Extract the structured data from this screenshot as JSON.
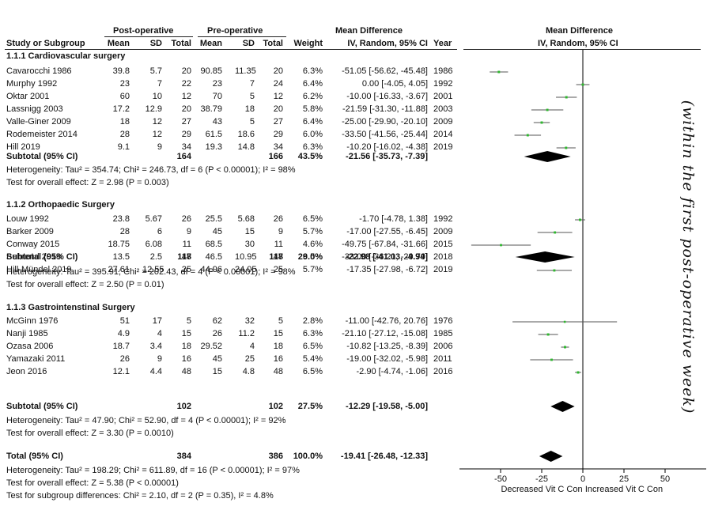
{
  "header": {
    "post_op": "Post-operative",
    "pre_op": "Pre-operative",
    "md_text": "Mean Difference",
    "md_plot": "Mean Difference",
    "study": "Study or Subgroup",
    "mean1": "Mean",
    "sd1": "SD",
    "total1": "Total",
    "mean2": "Mean",
    "sd2": "SD",
    "total2": "Total",
    "weight": "Weight",
    "method": "IV, Random, 95% CI",
    "year": "Year",
    "method_plot": "IV, Random, 95% CI"
  },
  "groups": [
    {
      "title": "1.1.1 Cardiovascular surgery",
      "studies": [
        {
          "name": "Cavarocchi 1986",
          "m1": "39.8",
          "sd1": "5.7",
          "n1": "20",
          "m2": "90.85",
          "sd2": "11.35",
          "n2": "20",
          "w": "6.3%",
          "ci": "-51.05 [-56.62, -45.48]",
          "year": "1986"
        },
        {
          "name": "Murphy 1992",
          "m1": "23",
          "sd1": "7",
          "n1": "22",
          "m2": "23",
          "sd2": "7",
          "n2": "24",
          "w": "6.4%",
          "ci": "0.00 [-4.05, 4.05]",
          "year": "1992"
        },
        {
          "name": "Oktar 2001",
          "m1": "60",
          "sd1": "10",
          "n1": "12",
          "m2": "70",
          "sd2": "5",
          "n2": "12",
          "w": "6.2%",
          "ci": "-10.00 [-16.33, -3.67]",
          "year": "2001"
        },
        {
          "name": "Lassnigg 2003",
          "m1": "17.2",
          "sd1": "12.9",
          "n1": "20",
          "m2": "38.79",
          "sd2": "18",
          "n2": "20",
          "w": "5.8%",
          "ci": "-21.59 [-31.30, -11.88]",
          "year": "2003"
        },
        {
          "name": "Valle-Giner 2009",
          "m1": "18",
          "sd1": "12",
          "n1": "27",
          "m2": "43",
          "sd2": "5",
          "n2": "27",
          "w": "6.4%",
          "ci": "-25.00 [-29.90, -20.10]",
          "year": "2009"
        },
        {
          "name": "Rodemeister 2014",
          "m1": "28",
          "sd1": "12",
          "n1": "29",
          "m2": "61.5",
          "sd2": "18.6",
          "n2": "29",
          "w": "6.0%",
          "ci": "-33.50 [-41.56, -25.44]",
          "year": "2014"
        },
        {
          "name": "Hill 2019",
          "m1": "9.1",
          "sd1": "9",
          "n1": "34",
          "m2": "19.3",
          "sd2": "14.8",
          "n2": "34",
          "w": "6.3%",
          "ci": "-10.20 [-16.02, -4.38]",
          "year": "2019"
        }
      ],
      "subtotal": {
        "label": "Subtotal (95% CI)",
        "n1": "164",
        "n2": "166",
        "w": "43.5%",
        "ci": "-21.56 [-35.73, -7.39]"
      },
      "heterogeneity": "Heterogeneity: Tau² = 354.74; Chi² = 246.73, df = 6 (P < 0.00001); I² = 98%",
      "overall": "Test for overall effect: Z = 2.98 (P = 0.003)"
    },
    {
      "title": "1.1.2 Orthopaedic Surgery",
      "studies": [
        {
          "name": "Louw 1992",
          "m1": "23.8",
          "sd1": "5.67",
          "n1": "26",
          "m2": "25.5",
          "sd2": "5.68",
          "n2": "26",
          "w": "6.5%",
          "ci": "-1.70 [-4.78, 1.38]",
          "year": "1992"
        },
        {
          "name": "Barker 2009",
          "m1": "28",
          "sd1": "6",
          "n1": "9",
          "m2": "45",
          "sd2": "15",
          "n2": "9",
          "w": "5.7%",
          "ci": "-17.00 [-27.55, -6.45]",
          "year": "2009"
        },
        {
          "name": "Conway 2015",
          "m1": "18.75",
          "sd1": "6.08",
          "n1": "11",
          "m2": "68.5",
          "sd2": "30",
          "n2": "11",
          "w": "4.6%",
          "ci": "-49.75 [-67.84, -31.66]",
          "year": "2015"
        },
        {
          "name": "Behrend 2018",
          "m1": "13.5",
          "sd1": "2.5",
          "n1": "47",
          "m2": "46.5",
          "sd2": "10.95",
          "n2": "47",
          "w": "6.5%",
          "ci": "-33.00 [-36.21, -29.79]",
          "year": "2018"
        },
        {
          "name": "Hill-Mündel 2019",
          "m1": "27.61",
          "sd1": "12.55",
          "n1": "25",
          "m2": "44.96",
          "sd2": "24.05",
          "n2": "25",
          "w": "5.7%",
          "ci": "-17.35 [-27.98, -6.72]",
          "year": "2019"
        }
      ],
      "subtotal": {
        "label": "Subtotal (95% CI)",
        "n1": "118",
        "n2": "118",
        "w": "29.0%",
        "ci": "-22.98 [-41.03, -4.94]"
      },
      "heterogeneity": "Heterogeneity: Tau² = 395.91; Chi² = 202.43, df = 4 (P < 0.00001); I² = 98%",
      "overall": "Test for overall effect: Z = 2.50 (P = 0.01)"
    },
    {
      "title": "1.1.3 Gastrointenstinal Surgery",
      "studies": [
        {
          "name": "McGinn 1976",
          "m1": "51",
          "sd1": "17",
          "n1": "5",
          "m2": "62",
          "sd2": "32",
          "n2": "5",
          "w": "2.8%",
          "ci": "-11.00 [-42.76, 20.76]",
          "year": "1976"
        },
        {
          "name": "Nanji 1985",
          "m1": "4.9",
          "sd1": "4",
          "n1": "15",
          "m2": "26",
          "sd2": "11.2",
          "n2": "15",
          "w": "6.3%",
          "ci": "-21.10 [-27.12, -15.08]",
          "year": "1985"
        },
        {
          "name": "Ozasa 2006",
          "m1": "18.7",
          "sd1": "3.4",
          "n1": "18",
          "m2": "29.52",
          "sd2": "4",
          "n2": "18",
          "w": "6.5%",
          "ci": "-10.82 [-13.25, -8.39]",
          "year": "2006"
        },
        {
          "name": "Yamazaki 2011",
          "m1": "26",
          "sd1": "9",
          "n1": "16",
          "m2": "45",
          "sd2": "25",
          "n2": "16",
          "w": "5.4%",
          "ci": "-19.00 [-32.02, -5.98]",
          "year": "2011"
        },
        {
          "name": "Jeon 2016",
          "m1": "12.1",
          "sd1": "4.4",
          "n1": "48",
          "m2": "15",
          "sd2": "4.8",
          "n2": "48",
          "w": "6.5%",
          "ci": "-2.90 [-4.74, -1.06]",
          "year": "2016"
        }
      ],
      "subtotal": {
        "label": "Subtotal (95% CI)",
        "n1": "102",
        "n2": "102",
        "w": "27.5%",
        "ci": "-12.29 [-19.58, -5.00]"
      },
      "heterogeneity": "Heterogeneity: Tau² = 47.90; Chi² = 52.90, df = 4 (P < 0.00001); I² = 92%",
      "overall": "Test for overall effect: Z = 3.30 (P = 0.0010)"
    }
  ],
  "total": {
    "label": "Total (95% CI)",
    "n1": "384",
    "n2": "386",
    "w": "100.0%",
    "ci": "-19.41 [-26.48, -12.33]",
    "heterogeneity": "Heterogeneity: Tau² = 198.29; Chi² = 611.89, df = 16 (P < 0.00001); I² = 97%",
    "overall": "Test for overall effect: Z = 5.38 (P < 0.00001)",
    "subgroup": "Test for subgroup differences: Chi² = 2.10, df = 2 (P = 0.35), I² = 4.8%"
  },
  "side_note": "(within the first post-operative week)",
  "colors": {
    "square": "#2fb82f",
    "line": "#555555",
    "diamond": "#000000"
  },
  "chart_data": {
    "type": "forest",
    "title": "Mean Difference IV, Random, 95% CI",
    "xlim": [
      -75,
      75
    ],
    "xticks": [
      -50,
      -25,
      0,
      25,
      50
    ],
    "xlabel_left": "Decreased Vit C Con",
    "xlabel_right": "Increased Vit C Con",
    "studies": [
      {
        "name": "Cavarocchi 1986",
        "md": -51.05,
        "lo": -56.62,
        "hi": -45.48,
        "weight": 6.3
      },
      {
        "name": "Murphy 1992",
        "md": 0.0,
        "lo": -4.05,
        "hi": 4.05,
        "weight": 6.4
      },
      {
        "name": "Oktar 2001",
        "md": -10.0,
        "lo": -16.33,
        "hi": -3.67,
        "weight": 6.2
      },
      {
        "name": "Lassnigg 2003",
        "md": -21.59,
        "lo": -31.3,
        "hi": -11.88,
        "weight": 5.8
      },
      {
        "name": "Valle-Giner 2009",
        "md": -25.0,
        "lo": -29.9,
        "hi": -20.1,
        "weight": 6.4
      },
      {
        "name": "Rodemeister 2014",
        "md": -33.5,
        "lo": -41.56,
        "hi": -25.44,
        "weight": 6.0
      },
      {
        "name": "Hill 2019",
        "md": -10.2,
        "lo": -16.02,
        "hi": -4.38,
        "weight": 6.3
      },
      {
        "name": "Louw 1992",
        "md": -1.7,
        "lo": -4.78,
        "hi": 1.38,
        "weight": 6.5
      },
      {
        "name": "Barker 2009",
        "md": -17.0,
        "lo": -27.55,
        "hi": -6.45,
        "weight": 5.7
      },
      {
        "name": "Conway 2015",
        "md": -49.75,
        "lo": -67.84,
        "hi": -31.66,
        "weight": 4.6
      },
      {
        "name": "Behrend 2018",
        "md": -33.0,
        "lo": -36.21,
        "hi": -29.79,
        "weight": 6.5
      },
      {
        "name": "Hill-Mündel 2019",
        "md": -17.35,
        "lo": -27.98,
        "hi": -6.72,
        "weight": 5.7
      },
      {
        "name": "McGinn 1976",
        "md": -11.0,
        "lo": -42.76,
        "hi": 20.76,
        "weight": 2.8
      },
      {
        "name": "Nanji 1985",
        "md": -21.1,
        "lo": -27.12,
        "hi": -15.08,
        "weight": 6.3
      },
      {
        "name": "Ozasa 2006",
        "md": -10.82,
        "lo": -13.25,
        "hi": -8.39,
        "weight": 6.5
      },
      {
        "name": "Yamazaki 2011",
        "md": -19.0,
        "lo": -32.02,
        "hi": -5.98,
        "weight": 5.4
      },
      {
        "name": "Jeon 2016",
        "md": -2.9,
        "lo": -4.74,
        "hi": -1.06,
        "weight": 6.5
      }
    ],
    "summaries": [
      {
        "name": "Subtotal 1.1.1",
        "md": -21.56,
        "lo": -35.73,
        "hi": -7.39
      },
      {
        "name": "Subtotal 1.1.2",
        "md": -22.98,
        "lo": -41.03,
        "hi": -4.94
      },
      {
        "name": "Subtotal 1.1.3",
        "md": -12.29,
        "lo": -19.58,
        "hi": -5.0
      },
      {
        "name": "Total",
        "md": -19.41,
        "lo": -26.48,
        "hi": -12.33
      }
    ]
  }
}
